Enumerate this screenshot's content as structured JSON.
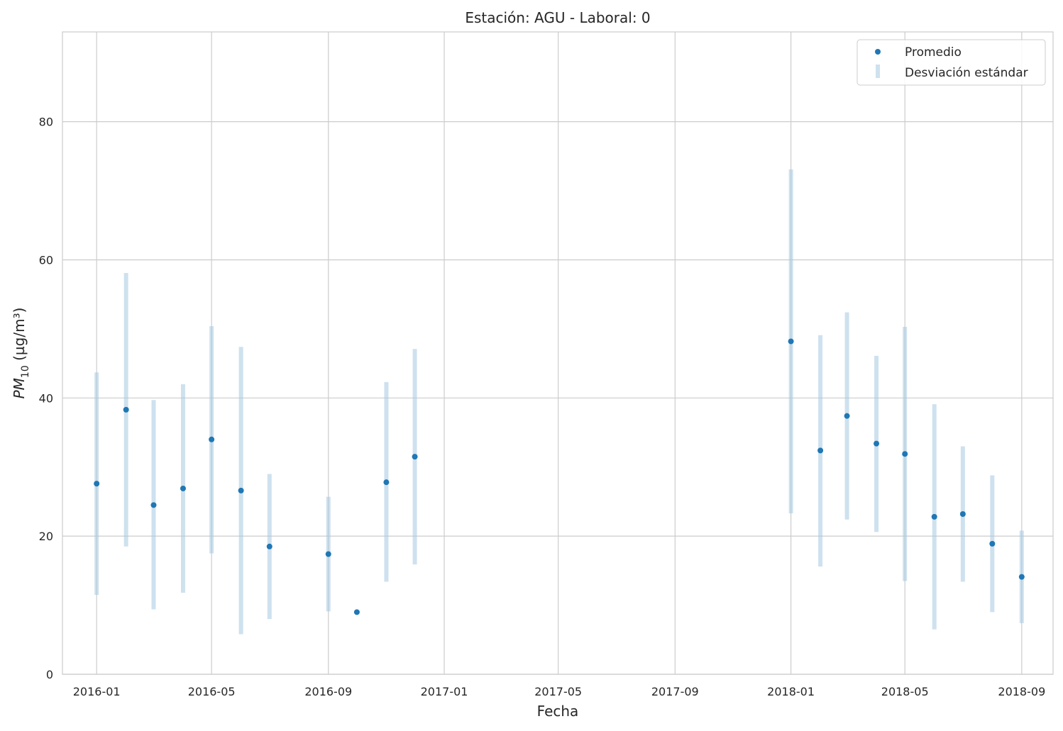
{
  "chart_data": {
    "type": "scatter",
    "title": "Estación: AGU - Laboral: 0",
    "xlabel": "Fecha",
    "ylabel_main": "PM",
    "ylabel_sub": "10",
    "ylabel_unit": " (µg/m³)",
    "ylim": [
      0,
      93
    ],
    "yticks": [
      0,
      20,
      40,
      60,
      80
    ],
    "xlim": [
      "2015-11-26",
      "2018-10-04"
    ],
    "xticks": [
      "2016-01",
      "2016-05",
      "2016-09",
      "2017-01",
      "2017-05",
      "2017-09",
      "2018-01",
      "2018-05",
      "2018-09"
    ],
    "grid": true,
    "legend_position": "top-right",
    "colors": {
      "mean": "#1f77b4",
      "std": "#a6c8e2"
    },
    "series": [
      {
        "name": "Promedio",
        "kind": "points"
      },
      {
        "name": "Desviación estándar",
        "kind": "error-bars"
      }
    ],
    "points": [
      {
        "date": "2016-01-01",
        "mean": 27.6,
        "low": 11.5,
        "high": 43.7
      },
      {
        "date": "2016-02-01",
        "mean": 38.3,
        "low": 18.5,
        "high": 58.1
      },
      {
        "date": "2016-03-01",
        "mean": 24.5,
        "low": 9.4,
        "high": 39.7
      },
      {
        "date": "2016-04-01",
        "mean": 26.9,
        "low": 11.8,
        "high": 42.0
      },
      {
        "date": "2016-05-01",
        "mean": 34.0,
        "low": 17.5,
        "high": 50.4
      },
      {
        "date": "2016-06-01",
        "mean": 26.6,
        "low": 5.8,
        "high": 47.4
      },
      {
        "date": "2016-07-01",
        "mean": 18.5,
        "low": 8.0,
        "high": 29.0
      },
      {
        "date": "2016-09-01",
        "mean": 17.4,
        "low": 9.1,
        "high": 25.7
      },
      {
        "date": "2016-10-01",
        "mean": 9.0,
        "low": 9.0,
        "high": 9.0
      },
      {
        "date": "2016-11-01",
        "mean": 27.8,
        "low": 13.4,
        "high": 42.3
      },
      {
        "date": "2016-12-01",
        "mean": 31.5,
        "low": 15.9,
        "high": 47.1
      },
      {
        "date": "2018-01-01",
        "mean": 48.2,
        "low": 23.3,
        "high": 73.1
      },
      {
        "date": "2018-02-01",
        "mean": 32.4,
        "low": 15.6,
        "high": 49.1
      },
      {
        "date": "2018-03-01",
        "mean": 37.4,
        "low": 22.4,
        "high": 52.4
      },
      {
        "date": "2018-04-01",
        "mean": 33.4,
        "low": 20.6,
        "high": 46.1
      },
      {
        "date": "2018-05-01",
        "mean": 31.9,
        "low": 13.5,
        "high": 50.3
      },
      {
        "date": "2018-06-01",
        "mean": 22.8,
        "low": 6.5,
        "high": 39.1
      },
      {
        "date": "2018-07-01",
        "mean": 23.2,
        "low": 13.4,
        "high": 33.0
      },
      {
        "date": "2018-08-01",
        "mean": 18.9,
        "low": 9.0,
        "high": 28.8
      },
      {
        "date": "2018-09-01",
        "mean": 14.1,
        "low": 7.4,
        "high": 20.8
      }
    ]
  }
}
